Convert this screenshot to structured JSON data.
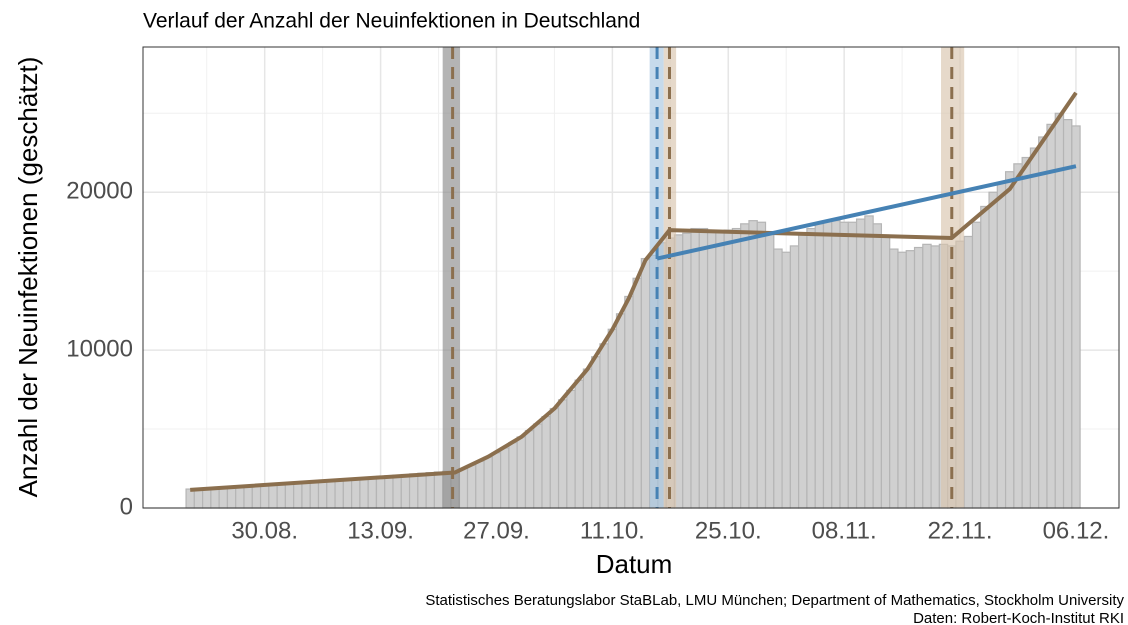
{
  "chart_data": {
    "type": "bar",
    "title": "Verlauf der Anzahl der Neuinfektionen in Deutschland",
    "x_label": "Datum",
    "y_label": "Anzahl der Neuinfektionen (geschätzt)",
    "caption": [
      "Statistisches Beratungslabor StaBLab, LMU München;  Department of Mathematics, Stockholm University",
      "Daten: Robert-Koch-Institut RKI"
    ],
    "x": [
      -9,
      -8,
      -7,
      -6,
      -5,
      -4,
      -3,
      -2,
      -1,
      0,
      1,
      2,
      3,
      4,
      5,
      6,
      7,
      8,
      9,
      10,
      11,
      12,
      13,
      14,
      15,
      16,
      17,
      18,
      19,
      20,
      21,
      22,
      23,
      24,
      25,
      26,
      27,
      28,
      29,
      30,
      31,
      32,
      33,
      34,
      35,
      36,
      37,
      38,
      39,
      40,
      41,
      42,
      43,
      44,
      45,
      46,
      47,
      48,
      49,
      50,
      51,
      52,
      53,
      54,
      55,
      56,
      57,
      58,
      59,
      60,
      61,
      62,
      63,
      64,
      65,
      66,
      67,
      68,
      69,
      70,
      71,
      72,
      73,
      74,
      75,
      76,
      77,
      78,
      79,
      80,
      81,
      82,
      83,
      84,
      85,
      86,
      87,
      88,
      89,
      90,
      91,
      92,
      93,
      94,
      95,
      96,
      97,
      98
    ],
    "values": [
      1200,
      1230,
      1260,
      1290,
      1320,
      1350,
      1380,
      1410,
      1440,
      1470,
      1500,
      1530,
      1560,
      1600,
      1640,
      1680,
      1720,
      1760,
      1800,
      1840,
      1880,
      1920,
      1960,
      2000,
      2040,
      2080,
      2120,
      2160,
      2200,
      2240,
      2280,
      2320,
      2300,
      2500,
      2720,
      2960,
      3220,
      3500,
      3800,
      4140,
      4500,
      4900,
      5320,
      5790,
      6300,
      6850,
      7450,
      8100,
      8800,
      9580,
      10400,
      11320,
      12300,
      13400,
      14550,
      15800,
      16000,
      16800,
      17100,
      17300,
      17400,
      17700,
      17700,
      17600,
      17500,
      17600,
      17700,
      18000,
      18200,
      18100,
      17400,
      16400,
      16200,
      16600,
      17400,
      17700,
      18000,
      18200,
      18200,
      18100,
      18100,
      18300,
      18500,
      18000,
      17200,
      16400,
      16200,
      16300,
      16500,
      16700,
      16600,
      16700,
      16600,
      16900,
      17200,
      18100,
      19100,
      20000,
      20600,
      21300,
      21800,
      22200,
      22800,
      23500,
      24300,
      25000,
      24600,
      24200
    ],
    "color": "#d0d0d0",
    "lines": [
      {
        "color": "#8b6f4e",
        "x": [
          -9,
          23,
          27,
          31,
          35,
          39,
          42,
          44,
          46,
          48.9,
          83,
          90,
          98
        ],
        "values": [
          1150,
          2250,
          3250,
          4500,
          6300,
          8800,
          11300,
          13300,
          15700,
          17600,
          17100,
          20200,
          26300
        ]
      },
      {
        "color": "#4682b4",
        "x": [
          47.4,
          98
        ],
        "values": [
          15800,
          21650
        ]
      }
    ],
    "changepoints": [
      {
        "x": 22.7,
        "lower": 21.5,
        "upper": 23.6,
        "color": "#8b6f4e",
        "band_color": "#8c8c8c"
      },
      {
        "x": 47.4,
        "lower": 46.5,
        "upper": 48.2,
        "color": "#4682b4",
        "band_color": "#a8c6e0"
      },
      {
        "x": 48.9,
        "lower": 48.2,
        "upper": 49.7,
        "color": "#8b6f4e",
        "band_color": "#d9c4ad"
      },
      {
        "x": 83.0,
        "lower": 81.7,
        "upper": 84.5,
        "color": "#8b6f4e",
        "band_color": "#d9c4ad"
      }
    ],
    "xlim": [
      -14.7,
      103.2
    ],
    "xticks": [
      {
        "value": 0,
        "label": "30.08."
      },
      {
        "value": 14,
        "label": "13.09."
      },
      {
        "value": 28,
        "label": "27.09."
      },
      {
        "value": 42,
        "label": "11.10."
      },
      {
        "value": 56,
        "label": "25.10."
      },
      {
        "value": 70,
        "label": "08.11."
      },
      {
        "value": 84,
        "label": "22.11."
      },
      {
        "value": 98,
        "label": "06.12."
      }
    ],
    "xminor": [
      -7,
      7,
      21,
      35,
      49,
      63,
      77,
      91
    ],
    "ylim": [
      0,
      29200
    ],
    "yticks": [
      0,
      10000,
      20000
    ],
    "yminor": [
      5000,
      15000,
      25000
    ],
    "grid": true
  }
}
